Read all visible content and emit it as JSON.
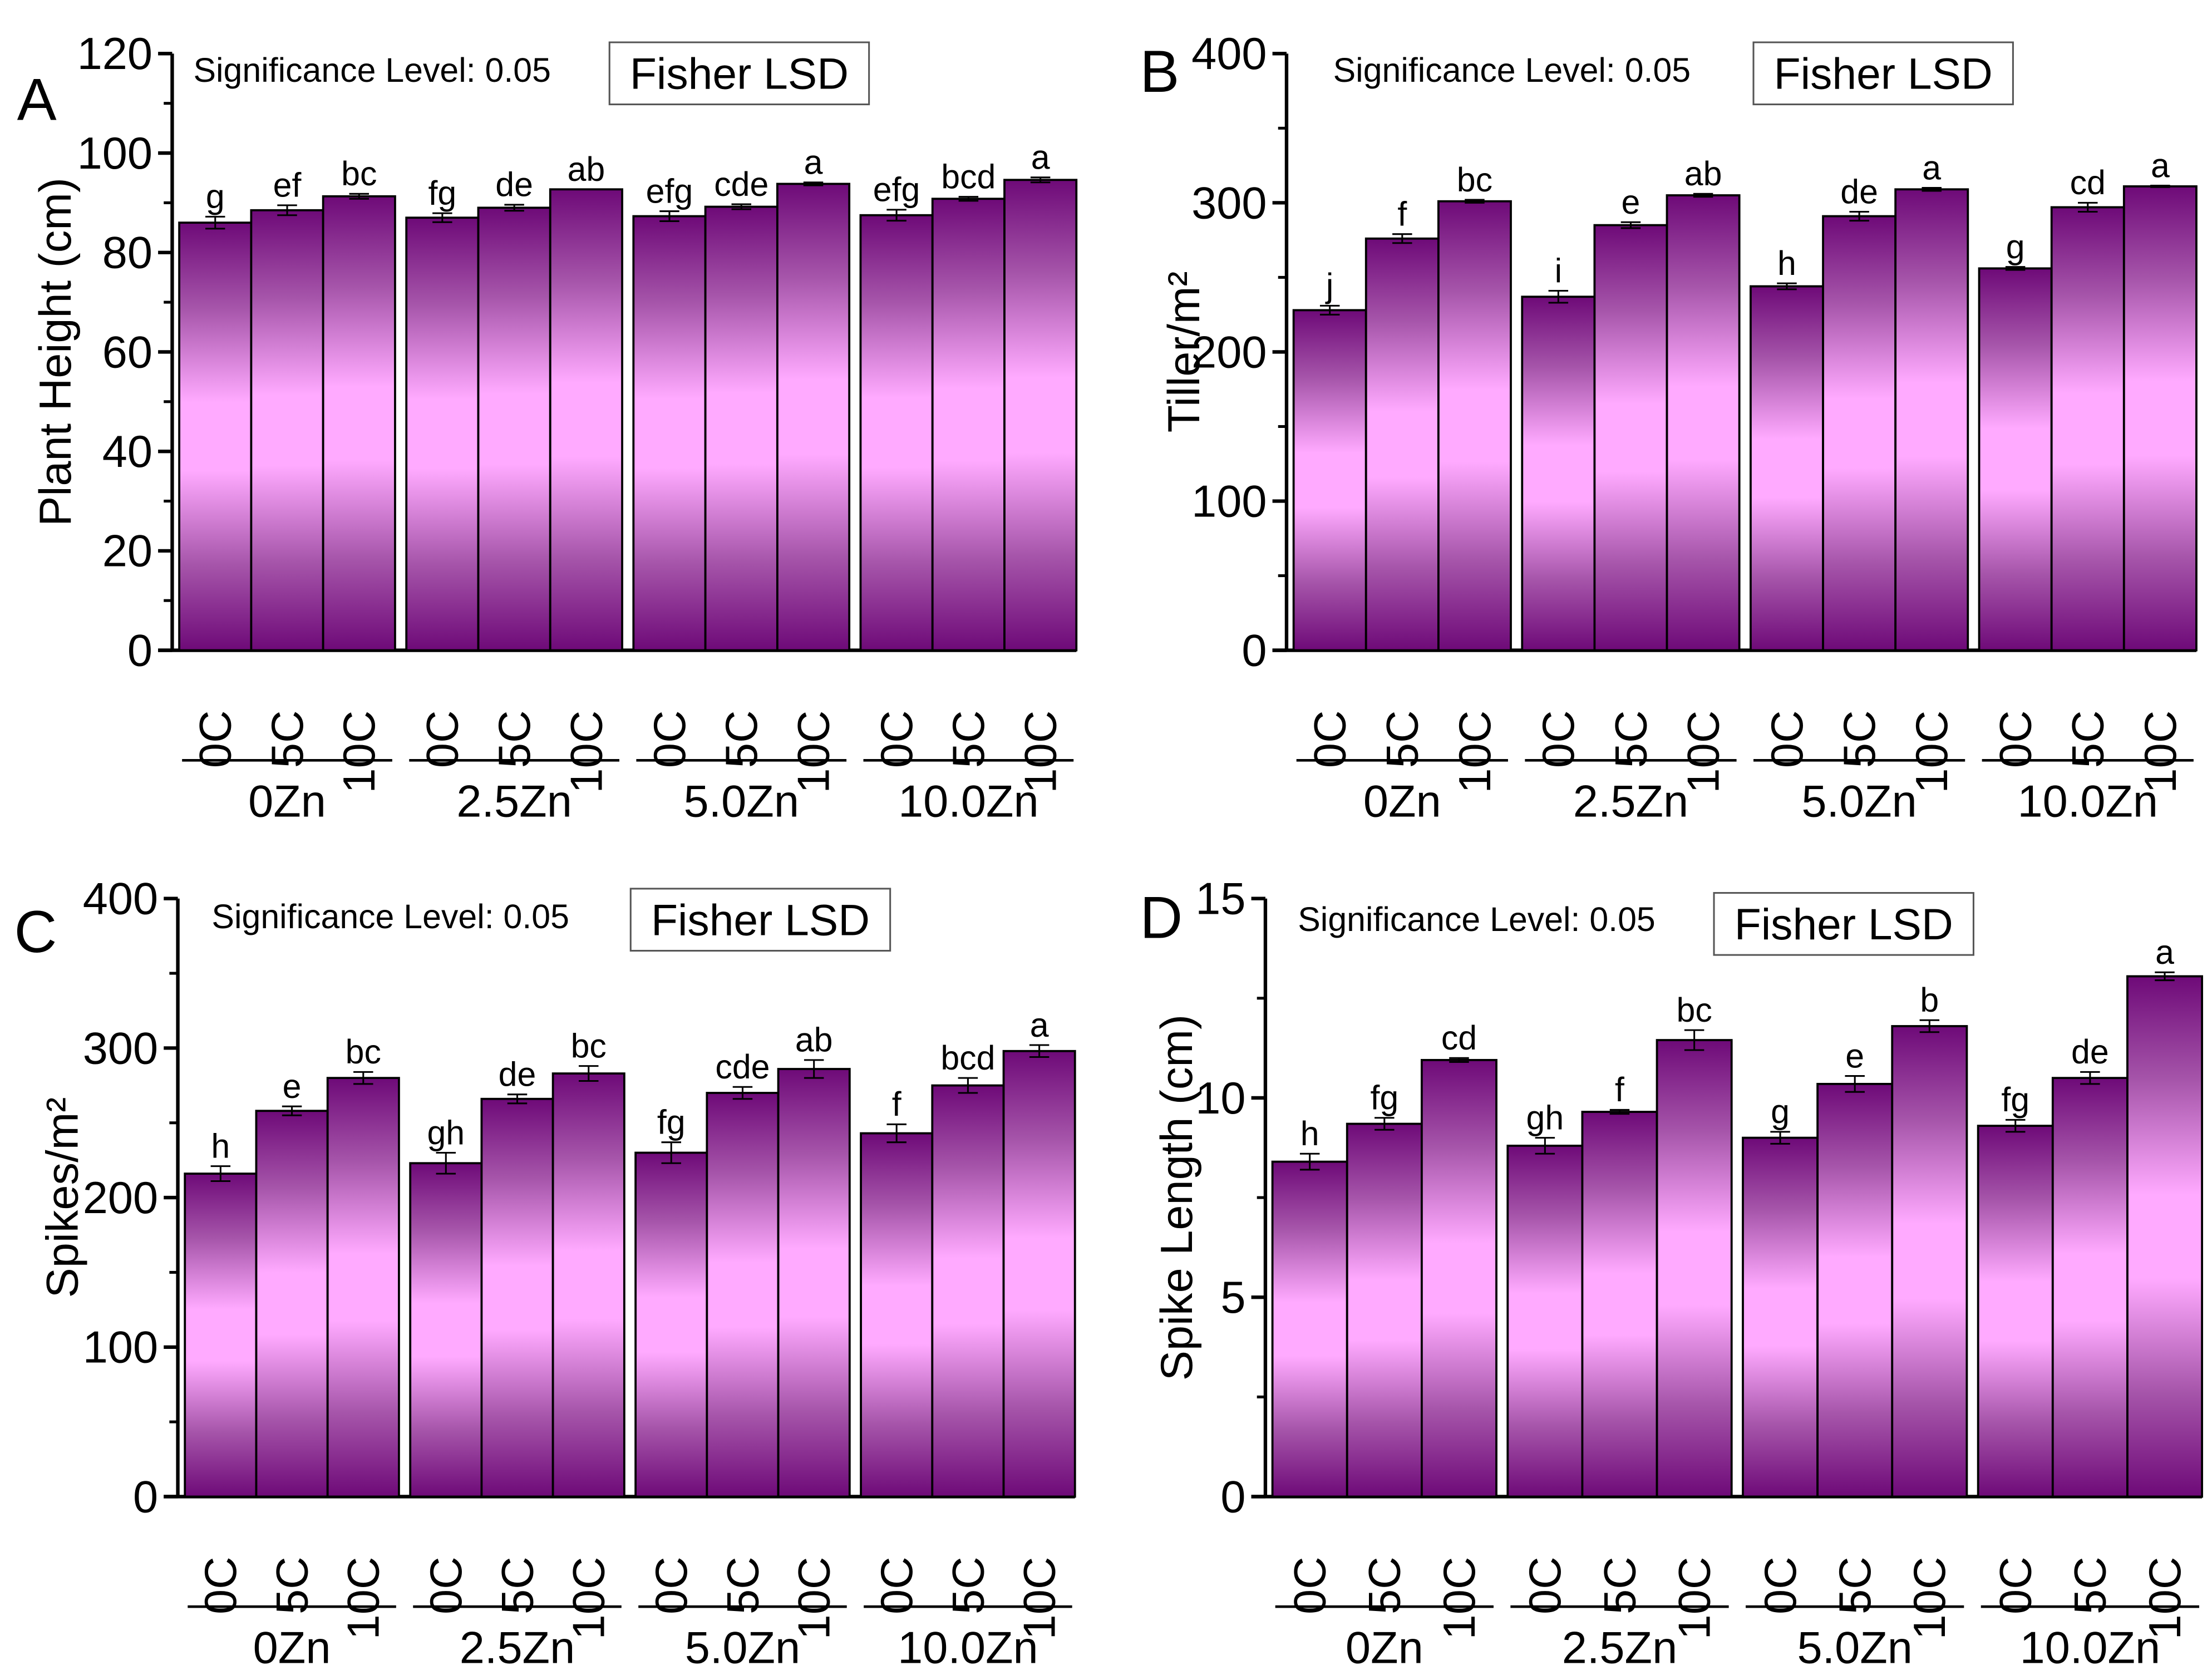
{
  "chart_data": [
    {
      "type": "bar",
      "panel": "A",
      "ylabel": "Plant Height (cm)",
      "ylim": [
        0,
        120
      ],
      "yticks": [
        0,
        20,
        40,
        60,
        80,
        100,
        120
      ],
      "note": "Significance Level: 0.05",
      "test": "Fisher LSD",
      "groups": [
        "0Zn",
        "2.5Zn",
        "5.0Zn",
        "10.0Zn"
      ],
      "categories": [
        "0C",
        "5C",
        "10C"
      ],
      "values": [
        [
          86,
          88.5,
          91.3
        ],
        [
          87,
          89,
          92.7
        ],
        [
          87.3,
          89.2,
          93.8
        ],
        [
          87.5,
          90.8,
          94.6
        ]
      ],
      "errors": [
        [
          1.2,
          1.0,
          0.5
        ],
        [
          0.9,
          0.6,
          0
        ],
        [
          1.0,
          0.5,
          0.3
        ],
        [
          1.1,
          0.4,
          0.5
        ]
      ],
      "letters": [
        [
          "g",
          "ef",
          "bc"
        ],
        [
          "fg",
          "de",
          "ab"
        ],
        [
          "efg",
          "cde",
          "a"
        ],
        [
          "efg",
          "bcd",
          "a"
        ]
      ]
    },
    {
      "type": "bar",
      "panel": "B",
      "ylabel": "Tiller/m²",
      "ylim": [
        0,
        400
      ],
      "yticks": [
        0,
        100,
        200,
        300,
        400
      ],
      "note": "Significance Level: 0.05",
      "test": "Fisher LSD",
      "groups": [
        "0Zn",
        "2.5Zn",
        "5.0Zn",
        "10.0Zn"
      ],
      "categories": [
        "0C",
        "5C",
        "10C"
      ],
      "values": [
        [
          228,
          276,
          301
        ],
        [
          237,
          285,
          305
        ],
        [
          244,
          291,
          309
        ],
        [
          256,
          297,
          311
        ]
      ],
      "errors": [
        [
          3,
          3,
          1
        ],
        [
          4,
          2,
          1
        ],
        [
          2,
          3,
          1
        ],
        [
          1,
          3,
          0.5
        ]
      ],
      "letters": [
        [
          "j",
          "f",
          "bc"
        ],
        [
          "i",
          "e",
          "ab"
        ],
        [
          "h",
          "de",
          "a"
        ],
        [
          "g",
          "cd",
          "a"
        ]
      ]
    },
    {
      "type": "bar",
      "panel": "C",
      "ylabel": "Spikes/m²",
      "ylim": [
        0,
        400
      ],
      "yticks": [
        0,
        100,
        200,
        300,
        400
      ],
      "note": "Significance Level: 0.05",
      "test": "Fisher LSD",
      "groups": [
        "0Zn",
        "2.5Zn",
        "5.0Zn",
        "10.0Zn"
      ],
      "categories": [
        "0C",
        "5C",
        "10C"
      ],
      "values": [
        [
          216,
          258,
          280
        ],
        [
          223,
          266,
          283
        ],
        [
          230,
          270,
          286
        ],
        [
          243,
          275,
          298
        ]
      ],
      "errors": [
        [
          5,
          3,
          4
        ],
        [
          7,
          3,
          5
        ],
        [
          7,
          4,
          6
        ],
        [
          6,
          5,
          4
        ]
      ],
      "letters": [
        [
          "h",
          "e",
          "bc"
        ],
        [
          "gh",
          "de",
          "bc"
        ],
        [
          "fg",
          "cde",
          "ab"
        ],
        [
          "f",
          "bcd",
          "a"
        ]
      ]
    },
    {
      "type": "bar",
      "panel": "D",
      "ylabel": "Spike Length (cm)",
      "ylim": [
        0,
        15
      ],
      "yticks": [
        0,
        5,
        10,
        15
      ],
      "note": "Significance Level: 0.05",
      "test": "Fisher LSD",
      "groups": [
        "0Zn",
        "2.5Zn",
        "5.0Zn",
        "10.0Zn"
      ],
      "categories": [
        "0C",
        "5C",
        "10C"
      ],
      "values": [
        [
          8.4,
          9.35,
          10.95
        ],
        [
          8.8,
          9.65,
          11.45
        ],
        [
          9.0,
          10.35,
          11.8
        ],
        [
          9.3,
          10.5,
          13.05
        ]
      ],
      "errors": [
        [
          0.2,
          0.15,
          0.05
        ],
        [
          0.2,
          0.05,
          0.25
        ],
        [
          0.15,
          0.2,
          0.15
        ],
        [
          0.15,
          0.15,
          0.1
        ]
      ],
      "letters": [
        [
          "h",
          "fg",
          "cd"
        ],
        [
          "gh",
          "f",
          "bc"
        ],
        [
          "g",
          "e",
          "b"
        ],
        [
          "fg",
          "de",
          "a"
        ]
      ]
    }
  ],
  "colors": {
    "bar_dark": "#6e0a78",
    "bar_light": "#ffaaff"
  }
}
